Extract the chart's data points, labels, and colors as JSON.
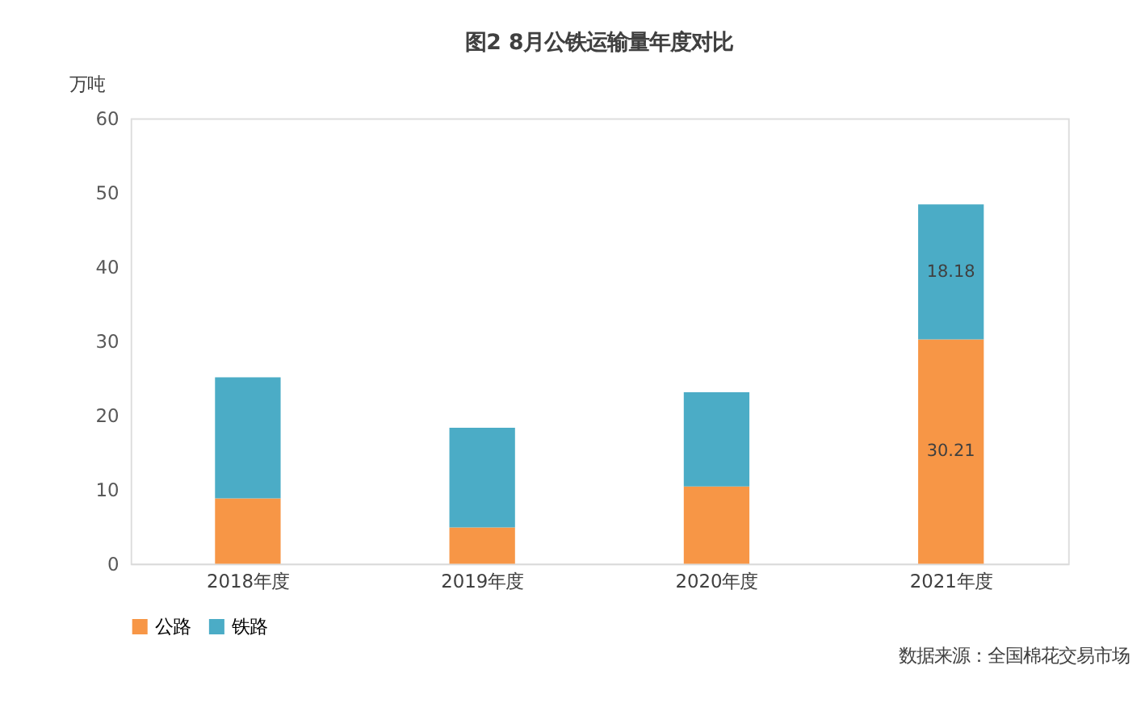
{
  "chart_data": {
    "type": "bar",
    "title": "图2 8月公铁运输量年度对比",
    "ylabel": "万吨",
    "categories": [
      "2018年度",
      "2019年度",
      "2020年度",
      "2021年度"
    ],
    "stacked": true,
    "ylim": [
      0,
      60
    ],
    "yticks": [
      0,
      10,
      20,
      30,
      40,
      50,
      60
    ],
    "grid": false,
    "legend": "bottom",
    "series": [
      {
        "name": "公路",
        "color": "#f79646",
        "values": [
          8.8,
          4.9,
          10.4,
          30.21
        ],
        "value_labels": [
          null,
          null,
          null,
          "30.21"
        ]
      },
      {
        "name": "铁路",
        "color": "#4bacc6",
        "values": [
          16.3,
          13.4,
          12.7,
          18.18
        ],
        "value_labels": [
          null,
          null,
          null,
          "18.18"
        ]
      }
    ],
    "annotations": [
      "数据来源：全国棉花交易市场"
    ]
  }
}
